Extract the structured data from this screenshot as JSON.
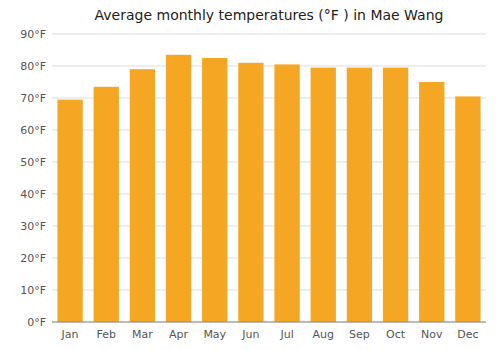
{
  "chart_data": {
    "type": "bar",
    "title": "Average monthly temperatures (°F ) in Mae Wang",
    "categories": [
      "Jan",
      "Feb",
      "Mar",
      "Apr",
      "May",
      "Jun",
      "Jul",
      "Aug",
      "Sep",
      "Oct",
      "Nov",
      "Dec"
    ],
    "values": [
      69.5,
      73.5,
      79.0,
      83.5,
      82.5,
      81.0,
      80.5,
      79.5,
      79.5,
      79.5,
      75.0,
      70.5
    ],
    "color": "#F5A623",
    "ylim": [
      0,
      90
    ],
    "yticks": [
      {
        "value": 0,
        "label": "0°F"
      },
      {
        "value": 10,
        "label": "10°F"
      },
      {
        "value": 20,
        "label": "20°F"
      },
      {
        "value": 30,
        "label": "30°F"
      },
      {
        "value": 40,
        "label": "40°F"
      },
      {
        "value": 50,
        "label": "50°F"
      },
      {
        "value": 60,
        "label": "60°F"
      },
      {
        "value": 70,
        "label": "70°F"
      },
      {
        "value": 80,
        "label": "80°F"
      },
      {
        "value": 90,
        "label": "90°F"
      }
    ],
    "grid": true
  }
}
